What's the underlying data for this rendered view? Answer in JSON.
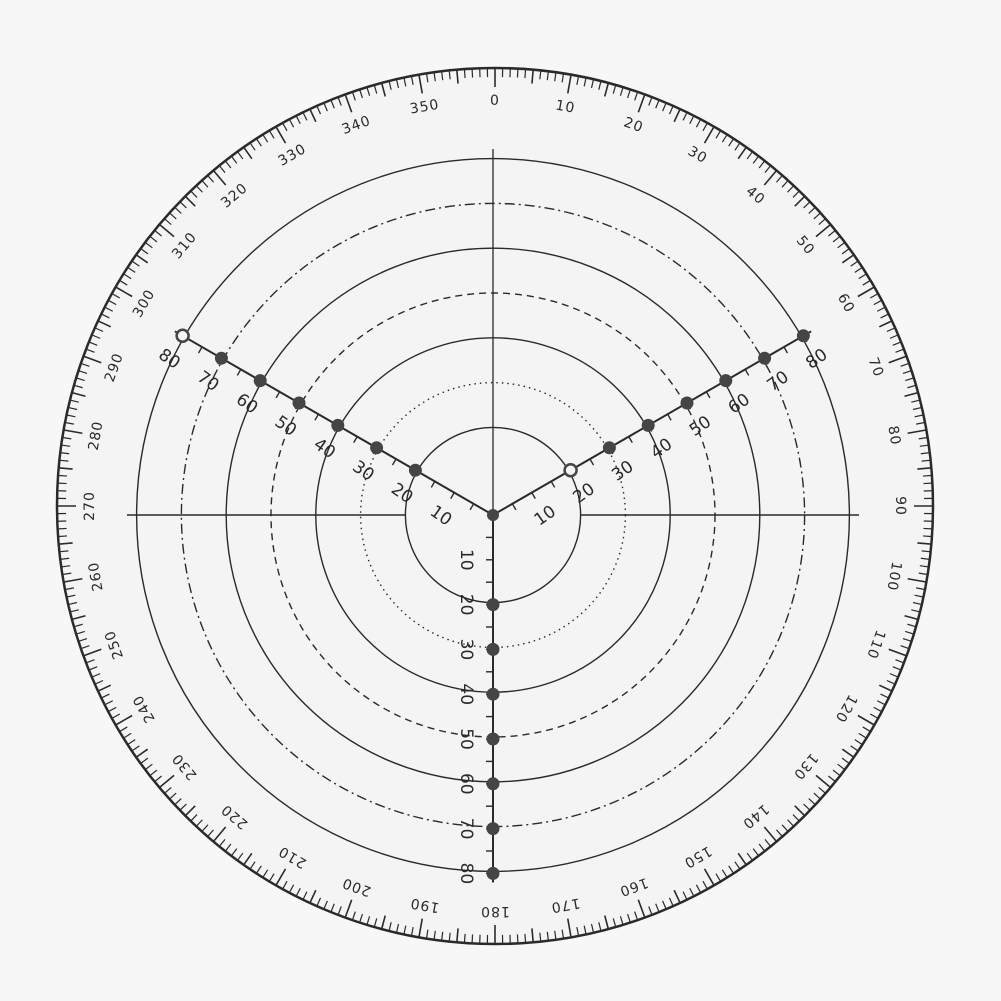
{
  "scale": {
    "degree_labels": [
      "0",
      "10",
      "20",
      "30",
      "40",
      "50",
      "60",
      "70",
      "80",
      "90",
      "100",
      "110",
      "120",
      "130",
      "140",
      "150",
      "160",
      "170",
      "180",
      "190",
      "200",
      "210",
      "220",
      "230",
      "240",
      "250",
      "260",
      "270",
      "280",
      "290",
      "300",
      "310",
      "320",
      "330",
      "340",
      "350"
    ],
    "tick_step_degrees": 1
  },
  "rings": [
    {
      "value": 20,
      "style": "solid"
    },
    {
      "value": 30,
      "style": "dotted"
    },
    {
      "value": 40,
      "style": "solid"
    },
    {
      "value": 50,
      "style": "dashed"
    },
    {
      "value": 60,
      "style": "solid"
    },
    {
      "value": 70,
      "style": "dash-dot"
    },
    {
      "value": 80,
      "style": "solid"
    }
  ],
  "arms": [
    {
      "direction_degrees": 180,
      "labels": [
        "10",
        "20",
        "30",
        "40",
        "50",
        "60",
        "70",
        "80"
      ],
      "hollow_dots": []
    },
    {
      "direction_degrees": 60,
      "labels": [
        "10",
        "20",
        "30",
        "40",
        "50",
        "60",
        "70",
        "80"
      ],
      "hollow_dots": [
        "20"
      ]
    },
    {
      "direction_degrees": 300,
      "labels": [
        "10",
        "20",
        "30",
        "40",
        "50",
        "60",
        "70",
        "80"
      ],
      "hollow_dots": [
        "80"
      ]
    }
  ],
  "colors": {
    "ink": "#2a2a2a",
    "face": "#f4f4f4",
    "dot": "#454545"
  }
}
